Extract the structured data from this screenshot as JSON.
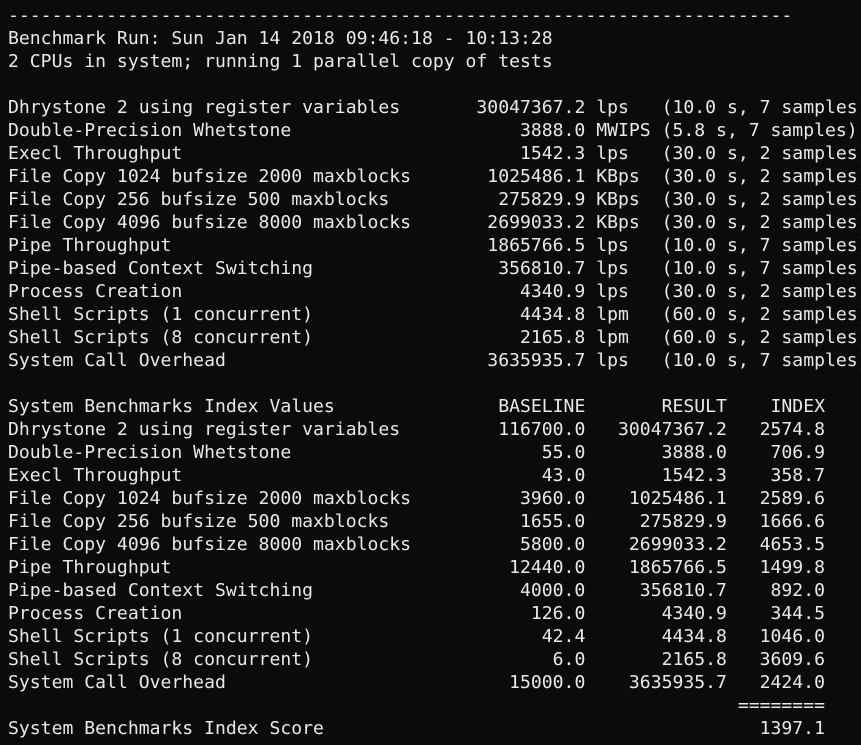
{
  "header": {
    "separator": "------------------------------------------------------------------------",
    "run_line": "Benchmark Run: Sun Jan 14 2018 09:46:18 - 10:13:28",
    "system_line": "2 CPUs in system; running 1 parallel copy of tests"
  },
  "results": {
    "rows": [
      {
        "name": "Dhrystone 2 using register variables",
        "value": "30047367.2",
        "unit": "lps",
        "note": "(10.0 s, 7 samples)"
      },
      {
        "name": "Double-Precision Whetstone",
        "value": "3888.0",
        "unit": "MWIPS",
        "note": "(5.8 s, 7 samples)"
      },
      {
        "name": "Execl Throughput",
        "value": "1542.3",
        "unit": "lps",
        "note": "(30.0 s, 2 samples)"
      },
      {
        "name": "File Copy 1024 bufsize 2000 maxblocks",
        "value": "1025486.1",
        "unit": "KBps",
        "note": "(30.0 s, 2 samples)"
      },
      {
        "name": "File Copy 256 bufsize 500 maxblocks",
        "value": "275829.9",
        "unit": "KBps",
        "note": "(30.0 s, 2 samples)"
      },
      {
        "name": "File Copy 4096 bufsize 8000 maxblocks",
        "value": "2699033.2",
        "unit": "KBps",
        "note": "(30.0 s, 2 samples)"
      },
      {
        "name": "Pipe Throughput",
        "value": "1865766.5",
        "unit": "lps",
        "note": "(10.0 s, 7 samples)"
      },
      {
        "name": "Pipe-based Context Switching",
        "value": "356810.7",
        "unit": "lps",
        "note": "(10.0 s, 7 samples)"
      },
      {
        "name": "Process Creation",
        "value": "4340.9",
        "unit": "lps",
        "note": "(30.0 s, 2 samples)"
      },
      {
        "name": "Shell Scripts (1 concurrent)",
        "value": "4434.8",
        "unit": "lpm",
        "note": "(60.0 s, 2 samples)"
      },
      {
        "name": "Shell Scripts (8 concurrent)",
        "value": "2165.8",
        "unit": "lpm",
        "note": "(60.0 s, 2 samples)"
      },
      {
        "name": "System Call Overhead",
        "value": "3635935.7",
        "unit": "lps",
        "note": "(10.0 s, 7 samples)"
      }
    ]
  },
  "index_table": {
    "title": "System Benchmarks Index Values",
    "col_baseline": "BASELINE",
    "col_result": "RESULT",
    "col_index": "INDEX",
    "rows": [
      {
        "name": "Dhrystone 2 using register variables",
        "baseline": "116700.0",
        "result": "30047367.2",
        "index": "2574.8"
      },
      {
        "name": "Double-Precision Whetstone",
        "baseline": "55.0",
        "result": "3888.0",
        "index": "706.9"
      },
      {
        "name": "Execl Throughput",
        "baseline": "43.0",
        "result": "1542.3",
        "index": "358.7"
      },
      {
        "name": "File Copy 1024 bufsize 2000 maxblocks",
        "baseline": "3960.0",
        "result": "1025486.1",
        "index": "2589.6"
      },
      {
        "name": "File Copy 256 bufsize 500 maxblocks",
        "baseline": "1655.0",
        "result": "275829.9",
        "index": "1666.6"
      },
      {
        "name": "File Copy 4096 bufsize 8000 maxblocks",
        "baseline": "5800.0",
        "result": "2699033.2",
        "index": "4653.5"
      },
      {
        "name": "Pipe Throughput",
        "baseline": "12440.0",
        "result": "1865766.5",
        "index": "1499.8"
      },
      {
        "name": "Pipe-based Context Switching",
        "baseline": "4000.0",
        "result": "356810.7",
        "index": "892.0"
      },
      {
        "name": "Process Creation",
        "baseline": "126.0",
        "result": "4340.9",
        "index": "344.5"
      },
      {
        "name": "Shell Scripts (1 concurrent)",
        "baseline": "42.4",
        "result": "4434.8",
        "index": "1046.0"
      },
      {
        "name": "Shell Scripts (8 concurrent)",
        "baseline": "6.0",
        "result": "2165.8",
        "index": "3609.6"
      },
      {
        "name": "System Call Overhead",
        "baseline": "15000.0",
        "result": "3635935.7",
        "index": "2424.0"
      }
    ],
    "divider": "========",
    "score_label": "System Benchmarks Index Score",
    "score_value": "1397.1"
  }
}
